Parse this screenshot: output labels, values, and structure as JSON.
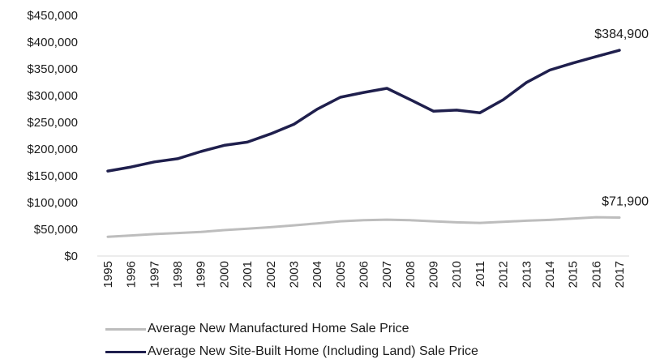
{
  "chart_data": {
    "type": "line",
    "title": "",
    "xlabel": "",
    "ylabel": "",
    "x": [
      "1995",
      "1996",
      "1997",
      "1998",
      "1999",
      "2000",
      "2001",
      "2002",
      "2003",
      "2004",
      "2005",
      "2006",
      "2007",
      "2008",
      "2009",
      "2010",
      "2011",
      "2012",
      "2013",
      "2014",
      "2015",
      "2016",
      "2017"
    ],
    "ylim": [
      0,
      450000
    ],
    "y_ticks": [
      "$0",
      "$50,000",
      "$100,000",
      "$150,000",
      "$200,000",
      "$250,000",
      "$300,000",
      "$350,000",
      "$400,000",
      "$450,000"
    ],
    "y_tick_values": [
      0,
      50000,
      100000,
      150000,
      200000,
      250000,
      300000,
      350000,
      400000,
      450000
    ],
    "grid": false,
    "legend_position": "bottom-left",
    "series": [
      {
        "name": "Average New Manufactured Home Sale Price",
        "color": "#bdbdbd",
        "values": [
          36000,
          38500,
          41000,
          43000,
          45000,
          48500,
          51000,
          54000,
          57500,
          61000,
          65000,
          67000,
          68000,
          67000,
          65000,
          63000,
          62000,
          64000,
          66000,
          67500,
          70000,
          72500,
          71900
        ],
        "end_label": "$71,900"
      },
      {
        "name": "Average New Site-Built Home (Including Land) Sale Price",
        "color": "#1f1f4d",
        "values": [
          159000,
          166500,
          176000,
          182000,
          195500,
          207000,
          213000,
          228500,
          246300,
          274500,
          297000,
          305900,
          313600,
          292600,
          270900,
          272900,
          267900,
          292200,
          324500,
          347700,
          360900,
          373000,
          384900
        ],
        "end_label": "$384,900"
      }
    ]
  }
}
